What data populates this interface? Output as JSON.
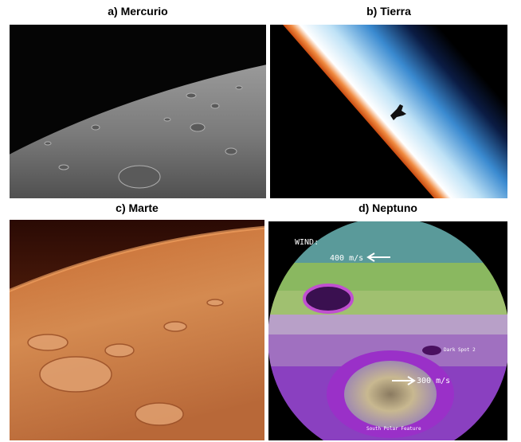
{
  "panels": [
    {
      "title": "a) Mercurio"
    },
    {
      "title": "b) Tierra"
    },
    {
      "title": "c) Marte"
    },
    {
      "title": "d) Neptuno",
      "labels": [
        "WIND:",
        "400 m/s",
        "Dark Spot 2",
        "300 m/s",
        "South Polar Feature"
      ]
    }
  ]
}
